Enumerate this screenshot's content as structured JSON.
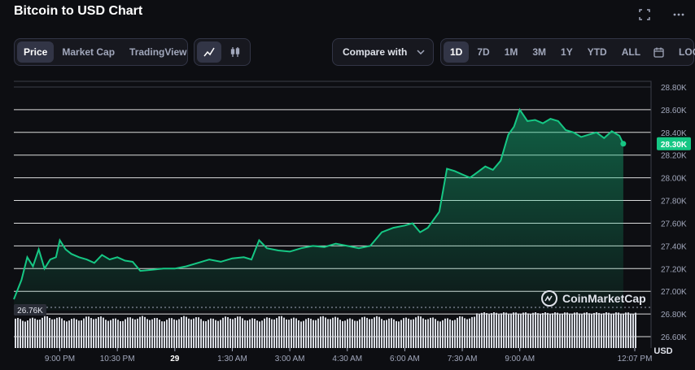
{
  "header": {
    "title": "Bitcoin to USD Chart"
  },
  "tabs": [
    "Price",
    "Market Cap",
    "TradingView"
  ],
  "compare": {
    "label": "Compare with"
  },
  "ranges": [
    "1D",
    "7D",
    "1M",
    "3M",
    "1Y",
    "YTD",
    "ALL"
  ],
  "log_label": "LOG",
  "watermark": "CoinMarketCap",
  "colors": {
    "accent": "#16c784",
    "background": "#0d0e12",
    "panel": "#17181f",
    "border": "#323546",
    "muted": "#a1a7bb"
  },
  "chart_data": {
    "type": "area",
    "currency_label": "USD",
    "current_price_label": "28.30K",
    "volume_label": "26.76K",
    "y_ticks": [
      "28.80K",
      "28.60K",
      "28.40K",
      "28.20K",
      "28.00K",
      "27.80K",
      "27.60K",
      "27.40K",
      "27.20K",
      "27.00K",
      "26.80K",
      "26.60K"
    ],
    "ylim": [
      26.5,
      28.85
    ],
    "x_ticks": [
      "9:00 PM",
      "10:30 PM",
      "29",
      "1:30 AM",
      "3:00 AM",
      "4:30 AM",
      "6:00 AM",
      "7:30 AM",
      "9:00 AM",
      "12:07 PM"
    ],
    "x_tick_times": [
      2.0,
      3.5,
      5.0,
      6.5,
      8.0,
      9.5,
      11.0,
      12.5,
      14.0,
      17.12
    ],
    "xlim": [
      0.8,
      17.0
    ],
    "price_series": [
      [
        0.8,
        26.93
      ],
      [
        1.0,
        27.1
      ],
      [
        1.15,
        27.3
      ],
      [
        1.3,
        27.22
      ],
      [
        1.45,
        27.37
      ],
      [
        1.6,
        27.2
      ],
      [
        1.75,
        27.28
      ],
      [
        1.9,
        27.3
      ],
      [
        2.0,
        27.45
      ],
      [
        2.15,
        27.37
      ],
      [
        2.3,
        27.33
      ],
      [
        2.5,
        27.3
      ],
      [
        2.7,
        27.28
      ],
      [
        2.9,
        27.25
      ],
      [
        3.1,
        27.32
      ],
      [
        3.3,
        27.28
      ],
      [
        3.5,
        27.3
      ],
      [
        3.7,
        27.27
      ],
      [
        3.9,
        27.26
      ],
      [
        4.1,
        27.18
      ],
      [
        4.4,
        27.19
      ],
      [
        4.7,
        27.2
      ],
      [
        5.0,
        27.2
      ],
      [
        5.3,
        27.22
      ],
      [
        5.6,
        27.25
      ],
      [
        5.9,
        27.28
      ],
      [
        6.2,
        27.26
      ],
      [
        6.5,
        27.29
      ],
      [
        6.8,
        27.3
      ],
      [
        7.0,
        27.28
      ],
      [
        7.2,
        27.45
      ],
      [
        7.4,
        27.38
      ],
      [
        7.7,
        27.36
      ],
      [
        8.0,
        27.35
      ],
      [
        8.3,
        27.38
      ],
      [
        8.6,
        27.4
      ],
      [
        8.9,
        27.39
      ],
      [
        9.2,
        27.42
      ],
      [
        9.5,
        27.4
      ],
      [
        9.8,
        27.38
      ],
      [
        10.1,
        27.4
      ],
      [
        10.4,
        27.52
      ],
      [
        10.7,
        27.56
      ],
      [
        11.0,
        27.58
      ],
      [
        11.2,
        27.6
      ],
      [
        11.4,
        27.52
      ],
      [
        11.6,
        27.56
      ],
      [
        11.9,
        27.7
      ],
      [
        12.1,
        28.08
      ],
      [
        12.3,
        28.06
      ],
      [
        12.5,
        28.03
      ],
      [
        12.7,
        28.0
      ],
      [
        12.9,
        28.05
      ],
      [
        13.1,
        28.1
      ],
      [
        13.3,
        28.07
      ],
      [
        13.5,
        28.15
      ],
      [
        13.7,
        28.38
      ],
      [
        13.85,
        28.45
      ],
      [
        14.0,
        28.6
      ],
      [
        14.2,
        28.5
      ],
      [
        14.4,
        28.51
      ],
      [
        14.6,
        28.48
      ],
      [
        14.8,
        28.52
      ],
      [
        15.0,
        28.5
      ],
      [
        15.2,
        28.42
      ],
      [
        15.4,
        28.4
      ],
      [
        15.6,
        28.36
      ],
      [
        15.8,
        28.38
      ],
      [
        16.0,
        28.4
      ],
      [
        16.2,
        28.35
      ],
      [
        16.4,
        28.41
      ],
      [
        16.6,
        28.37
      ],
      [
        16.7,
        28.3
      ]
    ]
  }
}
